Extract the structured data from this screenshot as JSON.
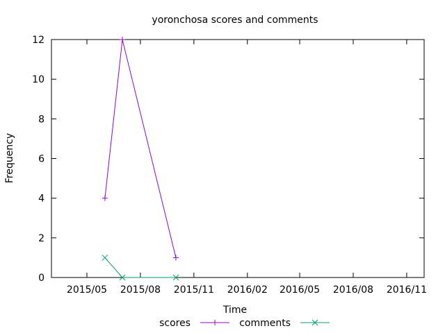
{
  "chart_data": {
    "type": "line",
    "title": "yoronchosa scores and comments",
    "xlabel": "Time",
    "ylabel": "Frequency",
    "x_axis_type": "date",
    "xlim": [
      "2015-03-01",
      "2016-12-01"
    ],
    "ylim": [
      0,
      12
    ],
    "x_ticks": [
      {
        "date": "2015-05-01",
        "label": "2015/05"
      },
      {
        "date": "2015-08-01",
        "label": "2015/08"
      },
      {
        "date": "2015-11-01",
        "label": "2015/11"
      },
      {
        "date": "2016-02-01",
        "label": "2016/02"
      },
      {
        "date": "2016-05-01",
        "label": "2016/05"
      },
      {
        "date": "2016-08-01",
        "label": "2016/08"
      },
      {
        "date": "2016-11-01",
        "label": "2016/11"
      }
    ],
    "y_ticks": [
      0,
      2,
      4,
      6,
      8,
      10,
      12
    ],
    "grid": false,
    "legend_position": "bottom-center",
    "series": [
      {
        "name": "scores",
        "color": "#9400d3",
        "marker": "plus",
        "x": [
          "2015-06-01",
          "2015-07-01",
          "2015-10-01"
        ],
        "values": [
          4,
          12,
          1
        ]
      },
      {
        "name": "comments",
        "color": "#009e73",
        "marker": "cross",
        "x": [
          "2015-06-01",
          "2015-07-01",
          "2015-10-01"
        ],
        "values": [
          1,
          0,
          0
        ]
      }
    ]
  }
}
